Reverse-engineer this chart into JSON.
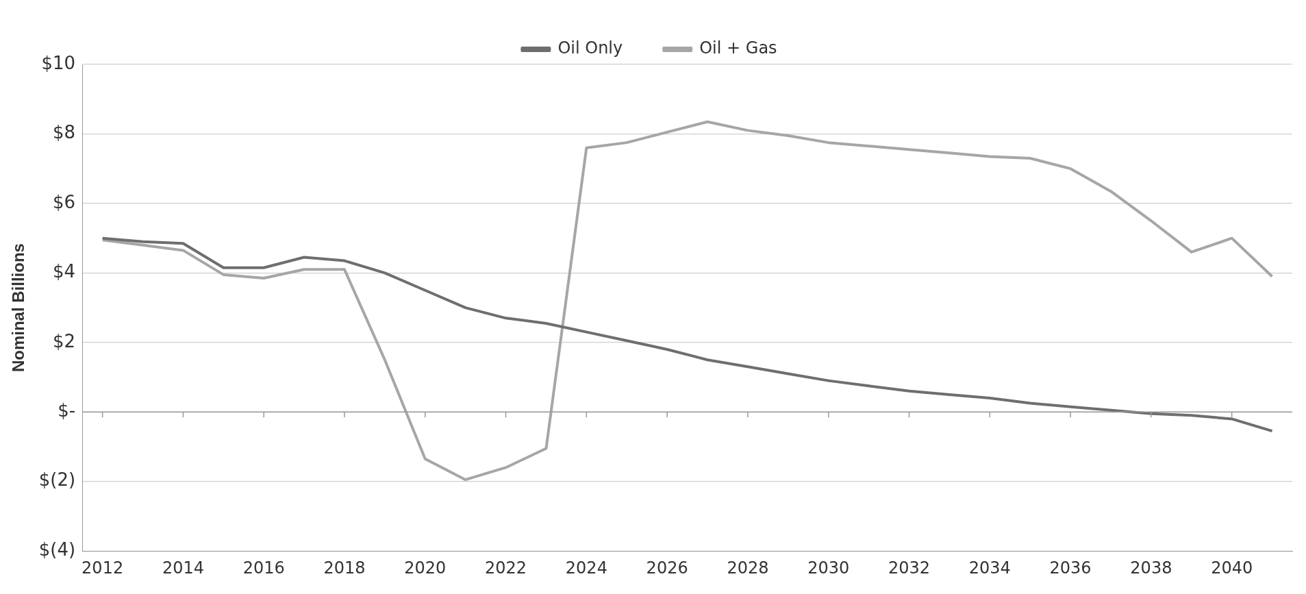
{
  "chart_data": {
    "type": "line",
    "ylabel": "Nominal Billions",
    "categories": [
      "2012",
      null,
      "2014",
      null,
      "2016",
      null,
      "2018",
      null,
      "2020",
      null,
      "2022",
      null,
      "2024",
      null,
      "2026",
      null,
      "2028",
      null,
      "2030",
      null,
      "2032",
      null,
      "2034",
      null,
      "2036",
      null,
      "2038",
      null,
      "2040",
      null
    ],
    "series": [
      {
        "name": "Oil Only",
        "color": "#6e6e6e",
        "values": [
          5.0,
          4.9,
          4.85,
          4.15,
          4.15,
          4.45,
          4.35,
          4.0,
          3.5,
          3.0,
          2.7,
          2.55,
          2.3,
          2.05,
          1.8,
          1.5,
          1.3,
          1.1,
          0.9,
          0.75,
          0.6,
          0.5,
          0.4,
          0.25,
          0.15,
          0.05,
          -0.05,
          -0.1,
          -0.2,
          -0.55
        ]
      },
      {
        "name": "Oil + Gas",
        "color": "#a6a6a6",
        "values": [
          4.95,
          4.8,
          4.65,
          3.95,
          3.85,
          4.1,
          4.1,
          1.5,
          -1.35,
          -1.95,
          -1.6,
          -1.05,
          7.6,
          7.75,
          8.05,
          8.35,
          8.1,
          7.95,
          7.75,
          7.65,
          7.55,
          7.45,
          7.35,
          7.3,
          7.0,
          6.35,
          5.5,
          4.6,
          5.0,
          3.9
        ]
      }
    ],
    "ylim": [
      -4,
      10
    ],
    "yticks": [
      {
        "value": -4,
        "label": "$(4)"
      },
      {
        "value": -2,
        "label": "$(2)"
      },
      {
        "value": 0,
        "label": "$-"
      },
      {
        "value": 2,
        "label": "$2"
      },
      {
        "value": 4,
        "label": "$4"
      },
      {
        "value": 6,
        "label": "$6"
      },
      {
        "value": 8,
        "label": "$8"
      },
      {
        "value": 10,
        "label": "$10"
      }
    ],
    "ref_lines": [
      {
        "axis": "y",
        "value": 0,
        "color": "#999999"
      }
    ],
    "grid": "y",
    "legend": "top",
    "marker": "none",
    "line_style": "solid"
  }
}
